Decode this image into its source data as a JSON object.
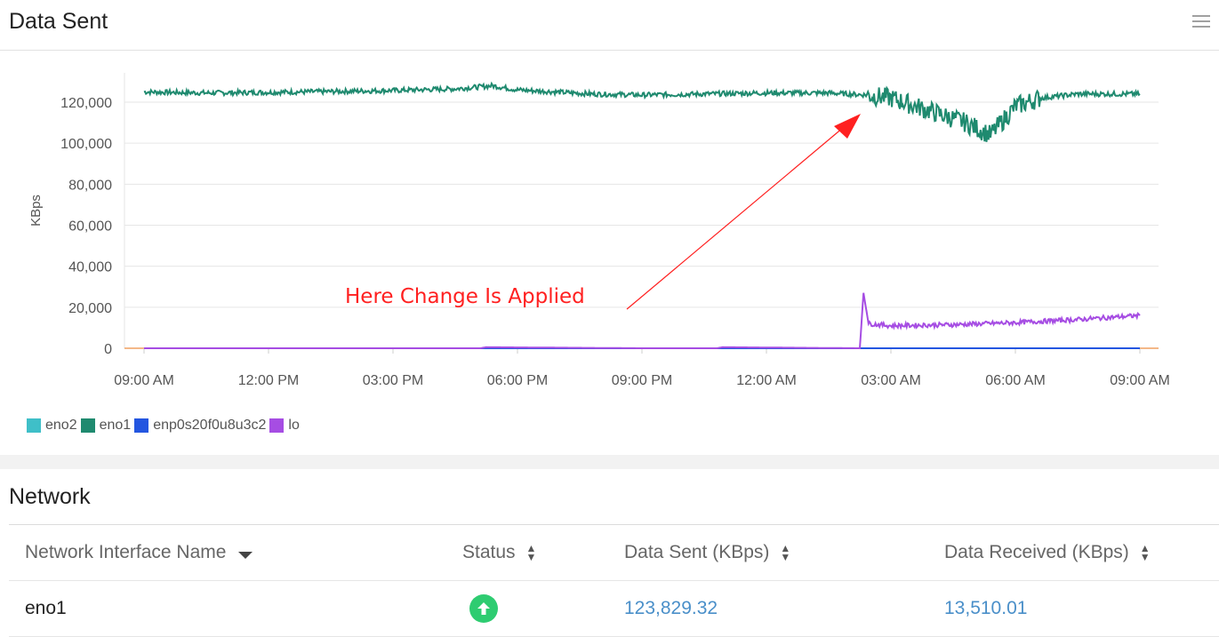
{
  "panel": {
    "title": "Data Sent",
    "menu_icon": "hamburger-menu-icon"
  },
  "chart_data": {
    "type": "line",
    "ylabel": "KBps",
    "xlabel": "",
    "ylim": [
      0,
      130000
    ],
    "yticks": [
      "0",
      "20,000",
      "40,000",
      "60,000",
      "80,000",
      "100,000",
      "120,000"
    ],
    "ytick_values": [
      0,
      20000,
      40000,
      60000,
      80000,
      100000,
      120000
    ],
    "x_categories": [
      "09:00 AM",
      "12:00 PM",
      "03:00 PM",
      "06:00 PM",
      "09:00 PM",
      "12:00 AM",
      "03:00 AM",
      "06:00 AM",
      "09:00 AM"
    ],
    "grid": true,
    "legend_position": "bottom-left",
    "annotation": {
      "text": "Here Change Is Applied",
      "color": "#ff2020"
    },
    "series": [
      {
        "name": "eno2",
        "color": "#3fbfc8",
        "x": [
          0,
          8
        ],
        "values": [
          0,
          0
        ]
      },
      {
        "name": "eno1",
        "color": "#1f8a6f",
        "x": [
          0,
          0.5,
          1,
          1.5,
          2,
          2.5,
          2.8,
          3.0,
          3.3,
          3.6,
          4,
          4.5,
          5,
          5.5,
          5.8,
          6.0,
          6.2,
          6.4,
          6.6,
          6.8,
          7.0,
          7.2,
          7.5,
          7.8,
          8.0
        ],
        "values": [
          125000,
          124500,
          124800,
          125200,
          125700,
          126500,
          128000,
          126000,
          125000,
          124000,
          123500,
          124000,
          124500,
          124500,
          123500,
          122000,
          118000,
          114000,
          110000,
          104000,
          118000,
          122000,
          124000,
          124000,
          124000
        ]
      },
      {
        "name": "enp0s20f0u8u3c2",
        "color": "#2456e0",
        "x": [
          0,
          8
        ],
        "values": [
          0,
          0
        ]
      },
      {
        "name": "lo",
        "color": "#a64de3",
        "x": [
          0,
          2.7,
          2.75,
          4,
          4.6,
          4.65,
          5.75,
          5.78,
          5.82,
          5.9,
          6.0,
          6.5,
          7.0,
          7.5,
          8.0
        ],
        "values": [
          0,
          0,
          500,
          0,
          0,
          500,
          0,
          27000,
          12000,
          11500,
          11000,
          11500,
          12500,
          14000,
          16000
        ]
      }
    ]
  },
  "network": {
    "title": "Network",
    "headers": {
      "name": "Network Interface Name",
      "status": "Status",
      "sent": "Data Sent (KBps)",
      "received": "Data Received (KBps)"
    },
    "rows": [
      {
        "name": "eno1",
        "status": "up",
        "sent": "123,829.32",
        "received": "13,510.01"
      }
    ]
  }
}
